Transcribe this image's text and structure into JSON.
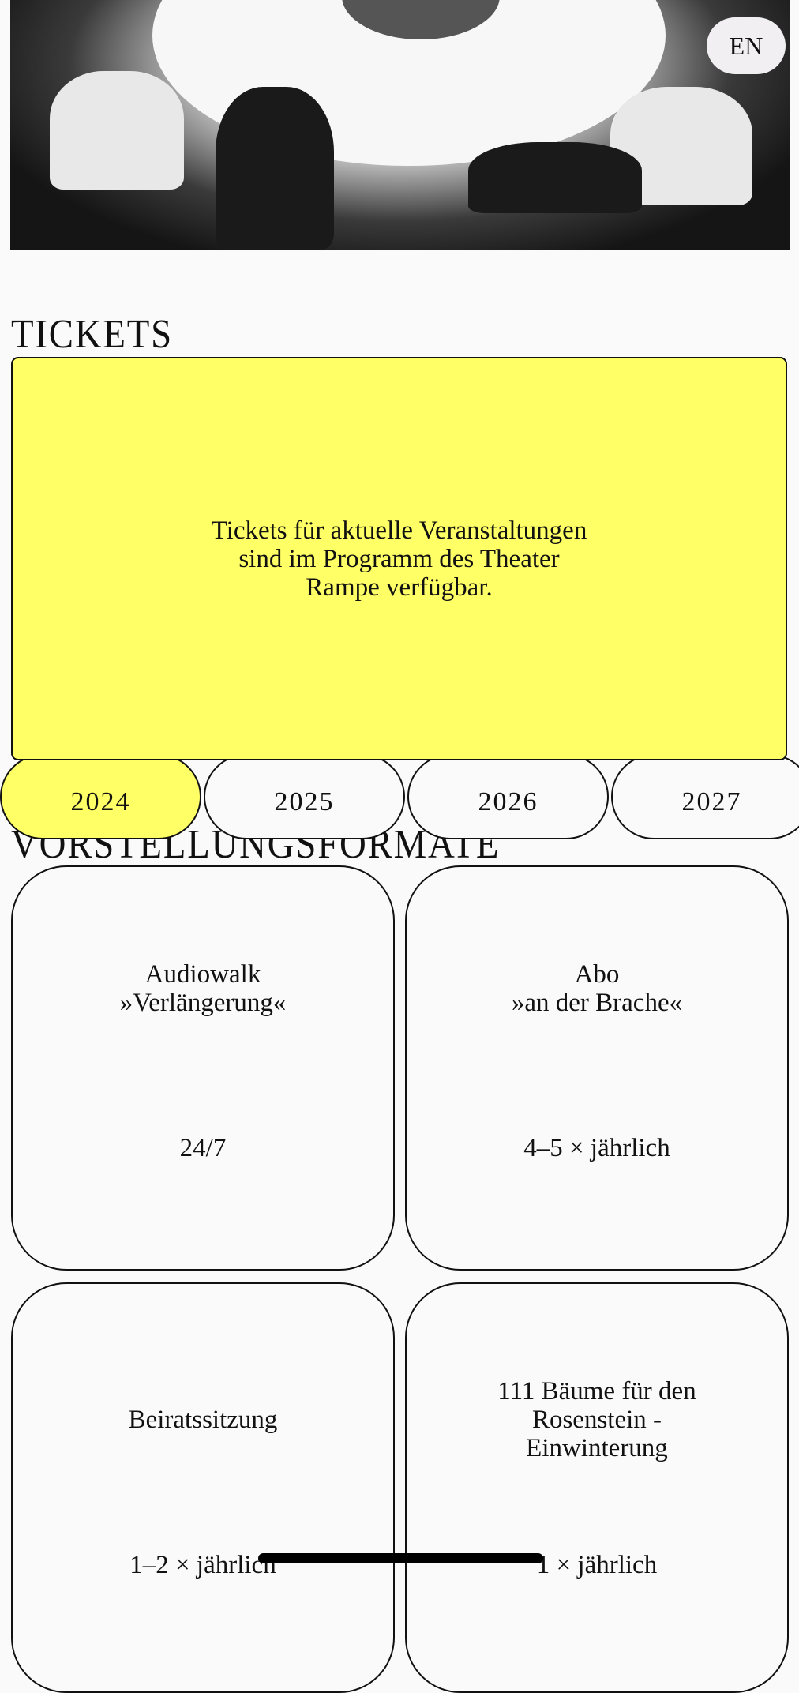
{
  "language_button": "EN",
  "tickets": {
    "heading": "TICKETS",
    "message": "Tickets für aktuelle Veranstaltungen sind im Programm des Theater Rampe verfügbar."
  },
  "years": [
    {
      "label": "2024",
      "active": true
    },
    {
      "label": "2025",
      "active": false
    },
    {
      "label": "2026",
      "active": false
    },
    {
      "label": "2027",
      "active": false
    }
  ],
  "formats": {
    "heading": "VORSTELLUNGSFORMATE",
    "cards": [
      {
        "title_line1": "Audiowalk",
        "title_line2": "»Verlängerung«",
        "frequency": "24/7"
      },
      {
        "title_line1": "Abo",
        "title_line2": "»an der Brache«",
        "frequency": "4–5 × jährlich"
      },
      {
        "title_line1": "Beiratssitzung",
        "title_line2": "",
        "frequency": "1–2 × jährlich"
      },
      {
        "title_line1": "111 Bäume für den Rosenstein - Einwinterung",
        "title_line2": "",
        "frequency": "1 × jährlich"
      }
    ]
  },
  "colors": {
    "accent": "#ffff66",
    "background": "#fafafa",
    "text": "#111111"
  }
}
